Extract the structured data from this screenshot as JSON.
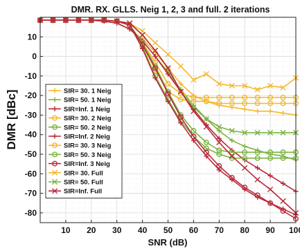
{
  "chart_data": {
    "type": "line",
    "title": "DMR. RX. GLLS. Neig 1, 2, 3 and full. 2 iterations",
    "xlabel": "SNR (dB)",
    "ylabel": "DMR [dBc]",
    "xlim": [
      0,
      100
    ],
    "ylim": [
      -85,
      20
    ],
    "xticks": [
      "10",
      "20",
      "30",
      "40",
      "50",
      "60",
      "70",
      "80",
      "90",
      "100"
    ],
    "xtick_values": [
      10,
      20,
      30,
      40,
      50,
      60,
      70,
      80,
      90,
      100
    ],
    "yticks": [
      "10",
      "0",
      "-10",
      "-20",
      "-30",
      "-40",
      "-50",
      "-60",
      "-70",
      "-80"
    ],
    "ytick_values": [
      10,
      0,
      -10,
      -20,
      -30,
      -40,
      -50,
      -60,
      -70,
      -80
    ],
    "grid": true,
    "legend_position": "center-left",
    "x": [
      0,
      5,
      10,
      15,
      20,
      25,
      30,
      35,
      40,
      45,
      50,
      55,
      60,
      65,
      70,
      75,
      80,
      85,
      90,
      95,
      100
    ],
    "series": [
      {
        "name": "SIR= 30. 1 Neig",
        "color": "#f5b82a",
        "marker": "plus",
        "values": [
          18.5,
          18.5,
          18.5,
          18.5,
          18.5,
          18,
          17,
          14,
          9,
          2,
          -6,
          -14,
          -20,
          -23,
          -25,
          -26,
          -27,
          -28,
          -28,
          -29,
          -30
        ]
      },
      {
        "name": "SIR= 50. 1 Neig",
        "color": "#7cb342",
        "marker": "plus",
        "values": [
          18.5,
          18.5,
          18.5,
          18.5,
          18.5,
          18,
          17,
          14,
          8,
          0,
          -8,
          -17,
          -25,
          -32,
          -38,
          -43,
          -46,
          -48,
          -50,
          -51,
          -53
        ]
      },
      {
        "name": "SIR=Inf. 1 Neig",
        "color": "#b8283a",
        "marker": "plus",
        "values": [
          18.5,
          18.5,
          18.5,
          18.5,
          18.5,
          18,
          17,
          14,
          8,
          0,
          -9,
          -18,
          -27,
          -35,
          -42,
          -48,
          -53,
          -57,
          -61,
          -65,
          -69
        ]
      },
      {
        "name": "SIR= 30. 2 Neig",
        "color": "#f5b82a",
        "marker": "circle",
        "values": [
          18.5,
          18.5,
          18.5,
          18.5,
          18.5,
          18.5,
          18,
          16,
          6,
          -7,
          -18,
          -22,
          -23,
          -23,
          -24,
          -24,
          -24,
          -24,
          -24,
          -24,
          -24
        ]
      },
      {
        "name": "SIR= 50. 2 Neig",
        "color": "#7cb342",
        "marker": "circle",
        "values": [
          18.5,
          18.5,
          18.5,
          18.5,
          18.5,
          18.5,
          18,
          16,
          5,
          -10,
          -22,
          -33,
          -41,
          -47,
          -50,
          -52,
          -52,
          -52,
          -52,
          -52,
          -52
        ]
      },
      {
        "name": "SIR=Inf. 2 Neig",
        "color": "#b8283a",
        "marker": "plus",
        "values": [
          18.5,
          18.5,
          18.5,
          18.5,
          18.5,
          18.5,
          18,
          16,
          4,
          -11,
          -23,
          -34,
          -43,
          -51,
          -58,
          -63,
          -68,
          -72,
          -75,
          -78,
          -81
        ]
      },
      {
        "name": "SIR= 30. 3 Neig",
        "color": "#f5b82a",
        "marker": "circle",
        "values": [
          18.5,
          18.5,
          18.5,
          18.5,
          18.5,
          18.5,
          18,
          16,
          7,
          -3,
          -14,
          -19,
          -21,
          -21,
          -21,
          -21,
          -21,
          -21,
          -21,
          -21,
          -21
        ]
      },
      {
        "name": "SIR= 50. 3 Neig",
        "color": "#7cb342",
        "marker": "circle",
        "values": [
          18.5,
          18.5,
          18.5,
          18.5,
          18.5,
          18.5,
          18,
          16,
          7,
          -5,
          -18,
          -30,
          -38,
          -44,
          -48,
          -49,
          -49,
          -49,
          -49,
          -49,
          -49
        ]
      },
      {
        "name": "SIR=Inf. 3 Neig",
        "color": "#b8283a",
        "marker": "circle",
        "values": [
          18.5,
          18.5,
          18.5,
          18.5,
          18.5,
          18.5,
          18,
          16,
          6,
          -6,
          -19,
          -31,
          -41,
          -49,
          -56,
          -62,
          -67,
          -71,
          -75,
          -79,
          -83
        ]
      },
      {
        "name": "SIR= 30. Full",
        "color": "#f5b82a",
        "marker": "x",
        "values": [
          18.5,
          18.5,
          18.5,
          18.5,
          18.5,
          18.5,
          18,
          17,
          13,
          7,
          1,
          -5,
          -12,
          -9,
          -14,
          -15,
          -15,
          -17,
          -15,
          -16,
          -11
        ]
      },
      {
        "name": "SIR= 50. Full",
        "color": "#7cb342",
        "marker": "x",
        "values": [
          18.5,
          18.5,
          18.5,
          18.5,
          18.5,
          18.5,
          18,
          17,
          11,
          3,
          -6,
          -18,
          -26,
          -32,
          -36,
          -38,
          -39,
          -39,
          -39,
          -39,
          -39
        ]
      },
      {
        "name": "SIR=Inf. Full",
        "color": "#b8283a",
        "marker": "x",
        "values": [
          18.5,
          18.5,
          18.5,
          18.5,
          18.5,
          18.5,
          18,
          17,
          11,
          3,
          -6,
          -18,
          -28,
          -36,
          -44,
          -51,
          -57,
          -63,
          -68,
          -74,
          -80
        ]
      }
    ]
  }
}
